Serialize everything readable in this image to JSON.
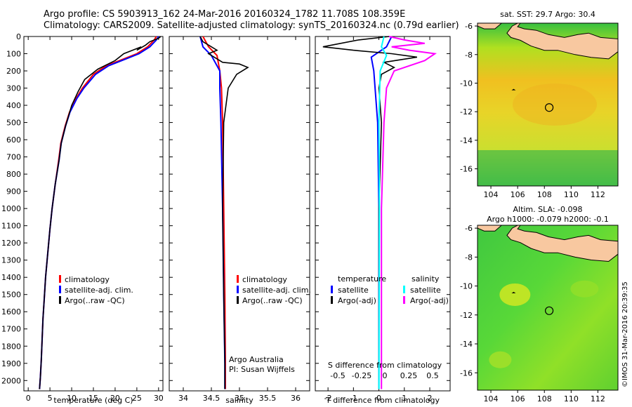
{
  "header": {
    "line1": "Argo profile: CS 5903913_162 24-Mar-2016 20160324_1782 11.708S 108.359E",
    "line2": "Climatology: CARS2009. Satellite-adjusted climatology: synTS_20160324.nc (0.79d earlier)"
  },
  "colors": {
    "climatology": "#ff0000",
    "satellite": "#0000ff",
    "argo": "#000000",
    "sal_satellite": "#00ffff",
    "sal_argo": "#ff00ff",
    "land": "#f8c8a0"
  },
  "chart_data": [
    {
      "id": "temperature",
      "type": "line",
      "xlabel": "temperature (deg C)",
      "ylim": [
        0,
        2060
      ],
      "xlim": [
        -1,
        31
      ],
      "invert_y": true,
      "xticks": [
        0,
        5,
        10,
        15,
        20,
        25,
        30
      ],
      "yticks": [
        0,
        100,
        200,
        300,
        400,
        500,
        600,
        700,
        800,
        900,
        1000,
        1100,
        1200,
        1300,
        1400,
        1500,
        1600,
        1700,
        1800,
        1900,
        2000
      ],
      "legend": [
        "climatology",
        "satellite-adj. clim.",
        "Argo(..raw -QC)"
      ],
      "series": [
        {
          "key": "climatology",
          "x": [
            29.5,
            29.0,
            27.5,
            25,
            22,
            18,
            15,
            12.5,
            11,
            9.5,
            8.5,
            7.5,
            7,
            6.2,
            5.5,
            5,
            4.5,
            4,
            3.7,
            3.4,
            3.2,
            3.0,
            2.8,
            2.6
          ],
          "y": [
            0,
            20,
            60,
            100,
            130,
            170,
            220,
            300,
            360,
            440,
            520,
            620,
            720,
            860,
            1000,
            1120,
            1260,
            1400,
            1520,
            1640,
            1760,
            1880,
            1980,
            2050
          ]
        },
        {
          "key": "satellite",
          "x": [
            30.0,
            29.5,
            28,
            25.5,
            22.5,
            18.5,
            15.5,
            12.8,
            11.2,
            9.6,
            8.6,
            7.6,
            7.1,
            6.2,
            5.5,
            5,
            4.5,
            4,
            3.7,
            3.4,
            3.2,
            3.0,
            2.8,
            2.6
          ],
          "y": [
            0,
            20,
            60,
            100,
            130,
            170,
            220,
            300,
            360,
            440,
            520,
            620,
            720,
            860,
            1000,
            1120,
            1260,
            1400,
            1520,
            1640,
            1760,
            1880,
            1980,
            2050
          ]
        },
        {
          "key": "argo",
          "x": [
            30.5,
            30,
            28,
            27,
            25,
            26,
            22,
            20,
            16,
            13,
            11.5,
            10,
            8.6,
            7.6,
            7.1,
            6.2,
            5.5,
            5,
            4.5,
            4,
            3.7,
            3.4,
            3.2,
            3.0,
            2.8,
            2.6
          ],
          "y": [
            0,
            10,
            30,
            50,
            80,
            60,
            100,
            140,
            190,
            250,
            320,
            400,
            520,
            620,
            720,
            860,
            1000,
            1120,
            1260,
            1400,
            1520,
            1640,
            1760,
            1880,
            1980,
            2050
          ]
        }
      ]
    },
    {
      "id": "salinity",
      "type": "line",
      "xlabel": "salinity",
      "ylim": [
        0,
        2060
      ],
      "xlim": [
        33.75,
        36.25
      ],
      "invert_y": true,
      "xticks": [
        34,
        34.5,
        35,
        35.5,
        36
      ],
      "legend": [
        "climatology",
        "satellite-adj. clim.",
        "Argo(..raw -QC)"
      ],
      "annotations": [
        "Argo Australia",
        "PI: Susan Wijffels"
      ],
      "series": [
        {
          "key": "climatology",
          "x": [
            34.35,
            34.45,
            34.6,
            34.65,
            34.68,
            34.7,
            34.72,
            34.74,
            34.75,
            34.75
          ],
          "y": [
            0,
            60,
            110,
            200,
            300,
            500,
            1000,
            1500,
            1900,
            2050
          ]
        },
        {
          "key": "satellite",
          "x": [
            34.3,
            34.35,
            34.5,
            34.65,
            34.65,
            34.67,
            34.7,
            34.72,
            34.74,
            34.74
          ],
          "y": [
            0,
            60,
            110,
            200,
            300,
            500,
            1000,
            1500,
            1900,
            2050
          ]
        },
        {
          "key": "argo",
          "x": [
            34.3,
            34.35,
            34.5,
            34.6,
            34.45,
            34.55,
            34.7,
            35.0,
            35.15,
            34.95,
            34.8,
            34.72,
            34.7,
            34.72,
            34.74,
            34.74
          ],
          "y": [
            0,
            30,
            60,
            80,
            100,
            120,
            150,
            160,
            180,
            220,
            300,
            500,
            1000,
            1500,
            1900,
            2050
          ]
        }
      ]
    },
    {
      "id": "difference",
      "type": "line",
      "xlabel": "T difference from climatology",
      "top_label": "S difference from climatology",
      "ylim": [
        0,
        2060
      ],
      "xlim": [
        -2.5,
        2.8
      ],
      "invert_y": true,
      "xticks": [
        -2,
        -1,
        0,
        1,
        2
      ],
      "top_ticks": [
        "-0.5",
        "-0.25",
        "0",
        "0.25",
        "0.5"
      ],
      "legend_titles": [
        "temperature",
        "salinity"
      ],
      "legend": [
        "satellite",
        "Argo(-adj)",
        "satellite",
        "Argo(-adj)"
      ],
      "series": [
        {
          "key": "satellite",
          "x": [
            0.5,
            0.3,
            -0.3,
            -0.2,
            -0.05,
            0,
            0
          ],
          "y": [
            0,
            60,
            120,
            200,
            500,
            1000,
            2050
          ]
        },
        {
          "key": "argo",
          "x": [
            0.4,
            -0.8,
            -2.2,
            -1.0,
            0.5,
            1.5,
            0.2,
            0.6,
            0.1,
            0,
            0.1,
            0,
            0
          ],
          "y": [
            0,
            20,
            60,
            80,
            100,
            120,
            150,
            180,
            220,
            300,
            500,
            1000,
            2050
          ]
        },
        {
          "key": "sal_satellite",
          "x": [
            0.2,
            0.1,
            0.3,
            0.05,
            0,
            0.02,
            0
          ],
          "y": [
            0,
            60,
            110,
            200,
            500,
            1000,
            2050
          ]
        },
        {
          "key": "sal_argo",
          "x": [
            0.4,
            1.0,
            1.8,
            0.5,
            1.2,
            2.2,
            1.8,
            0.6,
            0.3,
            0.2,
            0.1,
            0.1
          ],
          "y": [
            0,
            20,
            40,
            60,
            80,
            100,
            140,
            200,
            300,
            500,
            1000,
            2050
          ]
        }
      ]
    }
  ],
  "maps": {
    "sst": {
      "title": "sat. SST: 29.7 Argo: 30.4",
      "xticks": [
        "104",
        "106",
        "108",
        "110",
        "112"
      ],
      "yticks": [
        "-6",
        "-8",
        "-10",
        "-12",
        "-14",
        "-16"
      ],
      "xlim": [
        103,
        113.5
      ],
      "ylim": [
        -17.2,
        -5.8
      ],
      "argo_position": [
        108.359,
        -11.708
      ]
    },
    "sla": {
      "title_line1": "Altim. SLA: -0.098",
      "title_line2": "Argo h1000: -0.079 h2000: -0.1",
      "xticks": [
        "104",
        "106",
        "108",
        "110",
        "112"
      ],
      "yticks": [
        "-6",
        "-8",
        "-10",
        "-12",
        "-14",
        "-16"
      ],
      "xlim": [
        103,
        113.5
      ],
      "ylim": [
        -17.2,
        -5.8
      ],
      "argo_position": [
        108.359,
        -11.708
      ]
    }
  },
  "watermark": "©IMOS 31-Mar-2016 20:39:35"
}
